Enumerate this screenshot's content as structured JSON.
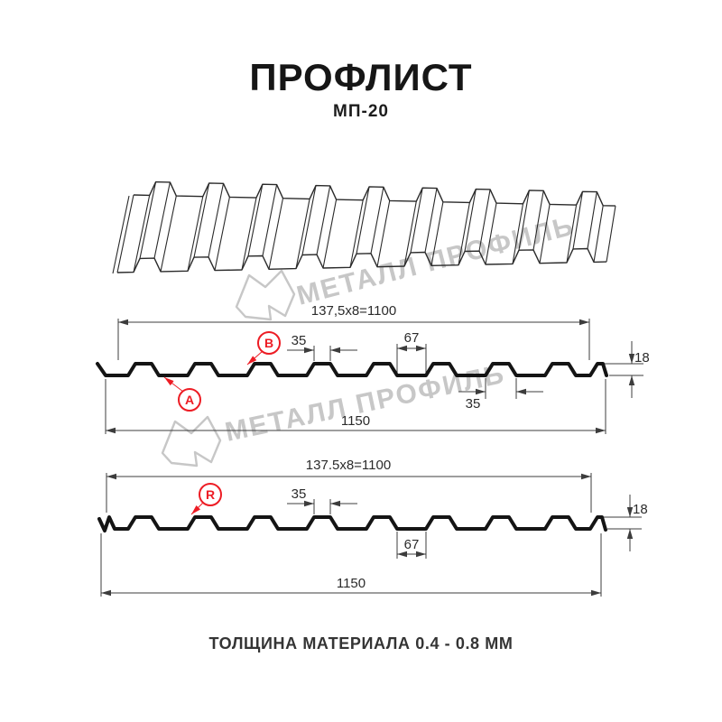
{
  "page": {
    "title": "ПРОФЛИСТ",
    "subtitle": "МП-20",
    "footer": "ТОЛЩИНА МАТЕРИАЛА 0.4 - 0.8 ММ"
  },
  "watermark": {
    "brand": "МЕТАЛЛ ПРОФИЛЬ"
  },
  "colors": {
    "accent_red": "#ed1c24",
    "drawing_line": "#3c3c3c",
    "profile_line": "#141414",
    "watermark_gray": "#c7c7c7",
    "background": "#ffffff"
  },
  "profile_section_top": {
    "pitch_dim": "137,5x8=1100",
    "overall_width": "1150",
    "rib_top_width": "35",
    "valley_width": "67",
    "profile_height": "18",
    "rib_bottom_width": "35",
    "labels": {
      "a": "A",
      "b": "B"
    }
  },
  "profile_section_bottom": {
    "pitch_dim": "137.5x8=1100",
    "overall_width": "1150",
    "rib_top_width": "35",
    "valley_width": "67",
    "profile_height": "18",
    "labels": {
      "r": "R"
    }
  }
}
